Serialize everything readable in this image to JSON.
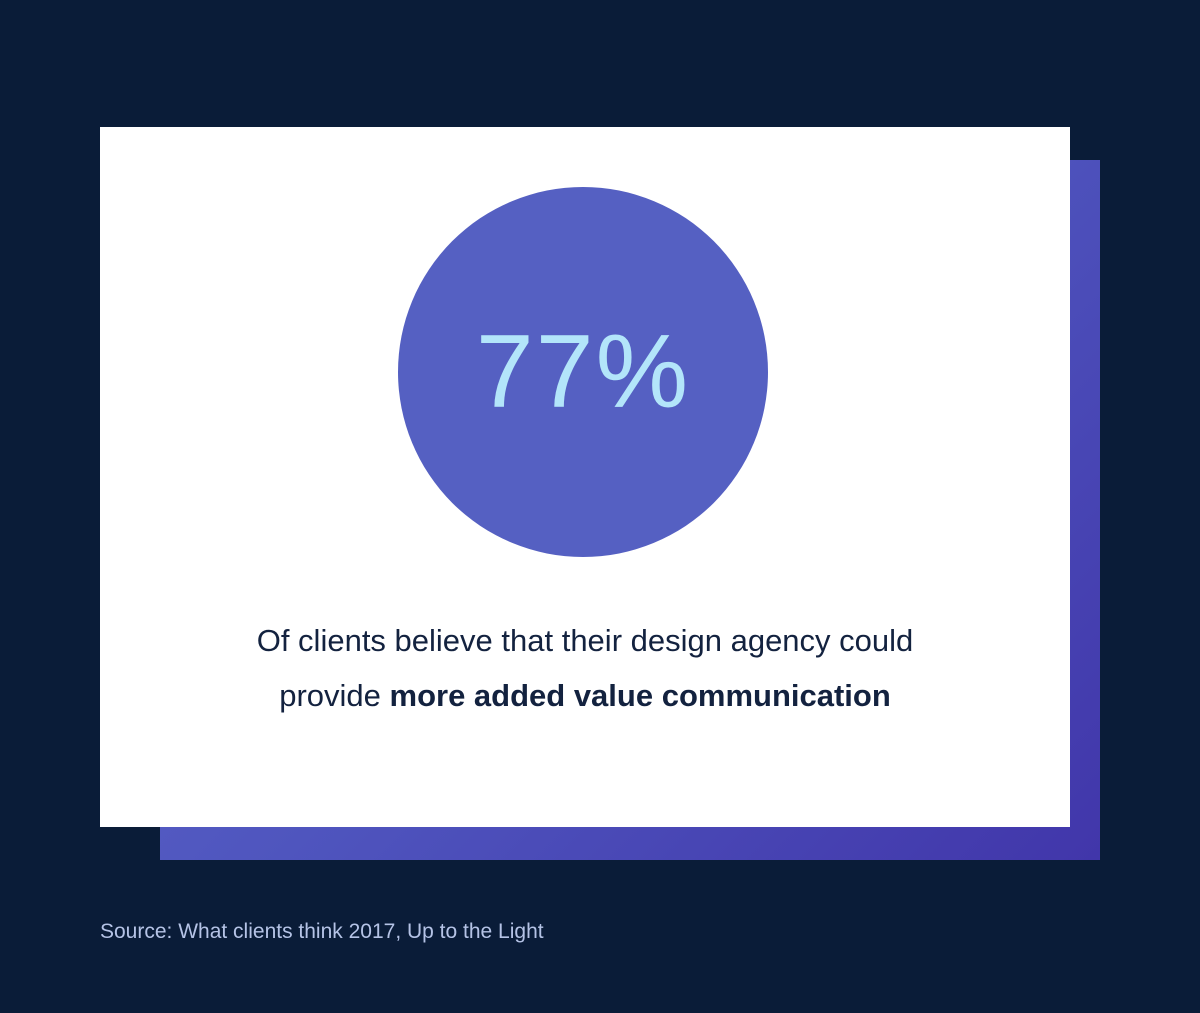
{
  "colors": {
    "background": "#0a1c38",
    "card": "#ffffff",
    "circle": "#5560c2",
    "stat_text": "#b3e5fa",
    "body_text": "#13223f",
    "gradient_start": "#5f6bce",
    "gradient_mid": "#4f55be",
    "gradient_end": "#4136aa",
    "source_text": "#b5c3e6"
  },
  "stat": {
    "value": "77%"
  },
  "caption": {
    "line1": "Of clients believe that their design agency could",
    "line2_prefix": "provide ",
    "line2_bold": "more added value communication"
  },
  "source": {
    "text": "Source: What clients think 2017, Up to the Light"
  },
  "chart_data": {
    "type": "stat",
    "value": 77,
    "unit": "%",
    "label": "Of clients believe that their design agency could provide more added value communication",
    "source": "Source: What clients think 2017, Up to the Light",
    "layout_hints": {
      "style": "single-stat infographic card",
      "stat_container": "filled circle",
      "background": "dark navy with offset blue-purple gradient drop panel"
    }
  }
}
